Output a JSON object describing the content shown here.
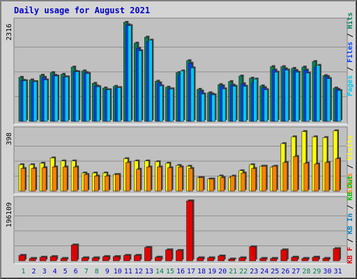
{
  "title": "Daily usage for August 2021",
  "colors": {
    "hits": "#00805c",
    "files": "#0040ff",
    "pages": "#00c8f0",
    "visits": "#ffff00",
    "sites": "#ff8000",
    "kbin": "#0080c0",
    "kbout": "#00c000",
    "kbf": "#e00000",
    "panel_bg": "#c0c0c0",
    "frame_bg": "#d4d4d4",
    "weekend_label": "#00805c",
    "weekday_label": "#0000cc"
  },
  "legend_top": [
    "Pages",
    "Files",
    "Hits"
  ],
  "legend_mid": [
    "Sites",
    "Visits"
  ],
  "legend_bot": [
    "KB F",
    "KB In",
    "KB Out"
  ],
  "chart_data": {
    "type": "bar",
    "x_label_note": "days of month",
    "categories": [
      "1",
      "2",
      "3",
      "4",
      "5",
      "6",
      "7",
      "8",
      "9",
      "10",
      "11",
      "12",
      "13",
      "14",
      "15",
      "16",
      "17",
      "18",
      "19",
      "20",
      "21",
      "22",
      "23",
      "24",
      "25",
      "26",
      "27",
      "28",
      "29",
      "30",
      "31"
    ],
    "weekend_days": [
      "1",
      "7",
      "8",
      "14",
      "15",
      "21",
      "22",
      "28",
      "29"
    ],
    "panels": [
      {
        "name": "hits_files_pages",
        "max_label": "2316",
        "ymax": 2316,
        "series": [
          {
            "name": "Hits",
            "values": [
              1030,
              970,
              1080,
              1140,
              1100,
              1270,
              1180,
              890,
              780,
              820,
              2316,
              1830,
              1970,
              940,
              800,
              1140,
              1420,
              750,
              670,
              860,
              930,
              1060,
              1010,
              830,
              1280,
              1280,
              1240,
              1270,
              1400,
              1070,
              780
            ]
          },
          {
            "name": "Files",
            "values": [
              960,
              930,
              1030,
              1080,
              1040,
              1170,
              1140,
              830,
              740,
              780,
              2260,
              1710,
              1870,
              900,
              760,
              1090,
              1360,
              710,
              640,
              830,
              850,
              880,
              900,
              790,
              1200,
              1230,
              1190,
              1200,
              1270,
              1050,
              750
            ]
          },
          {
            "name": "Pages",
            "values": [
              950,
              930,
              970,
              1060,
              1040,
              1160,
              1120,
              810,
              740,
              790,
              2240,
              1650,
              1900,
              830,
              760,
              1180,
              1250,
              640,
              620,
              760,
              820,
              820,
              990,
              740,
              1150,
              1200,
              1150,
              1130,
              1310,
              1000,
              720
            ]
          }
        ]
      },
      {
        "name": "visits_sites",
        "max_label": "398",
        "ymax": 398,
        "series": [
          {
            "name": "Visits",
            "values": [
              175,
              175,
              185,
              220,
              200,
              200,
              120,
              120,
              120,
              110,
              215,
              200,
              200,
              195,
              185,
              170,
              165,
              90,
              80,
              100,
              90,
              135,
              175,
              165,
              160,
              315,
              360,
              395,
              360,
              355,
              400
            ]
          },
          {
            "name": "Sites",
            "values": [
              150,
              150,
              155,
              160,
              160,
              160,
              110,
              100,
              100,
              110,
              190,
              145,
              160,
              160,
              155,
              160,
              150,
              90,
              80,
              90,
              100,
              120,
              150,
              165,
              165,
              190,
              230,
              185,
              180,
              190,
              215
            ]
          }
        ]
      },
      {
        "name": "kbytes",
        "max_label": "196109",
        "ymax": 196109,
        "series": [
          {
            "name": "KB F",
            "values": [
              18000,
              8000,
              12000,
              14000,
              8000,
              52000,
              10000,
              10000,
              14000,
              14000,
              18000,
              18000,
              44000,
              12000,
              36000,
              34000,
              196109,
              10000,
              10000,
              16000,
              6000,
              10000,
              46000,
              8000,
              8000,
              36000,
              12000,
              8000,
              12000,
              8000,
              40000
            ]
          }
        ]
      }
    ]
  }
}
